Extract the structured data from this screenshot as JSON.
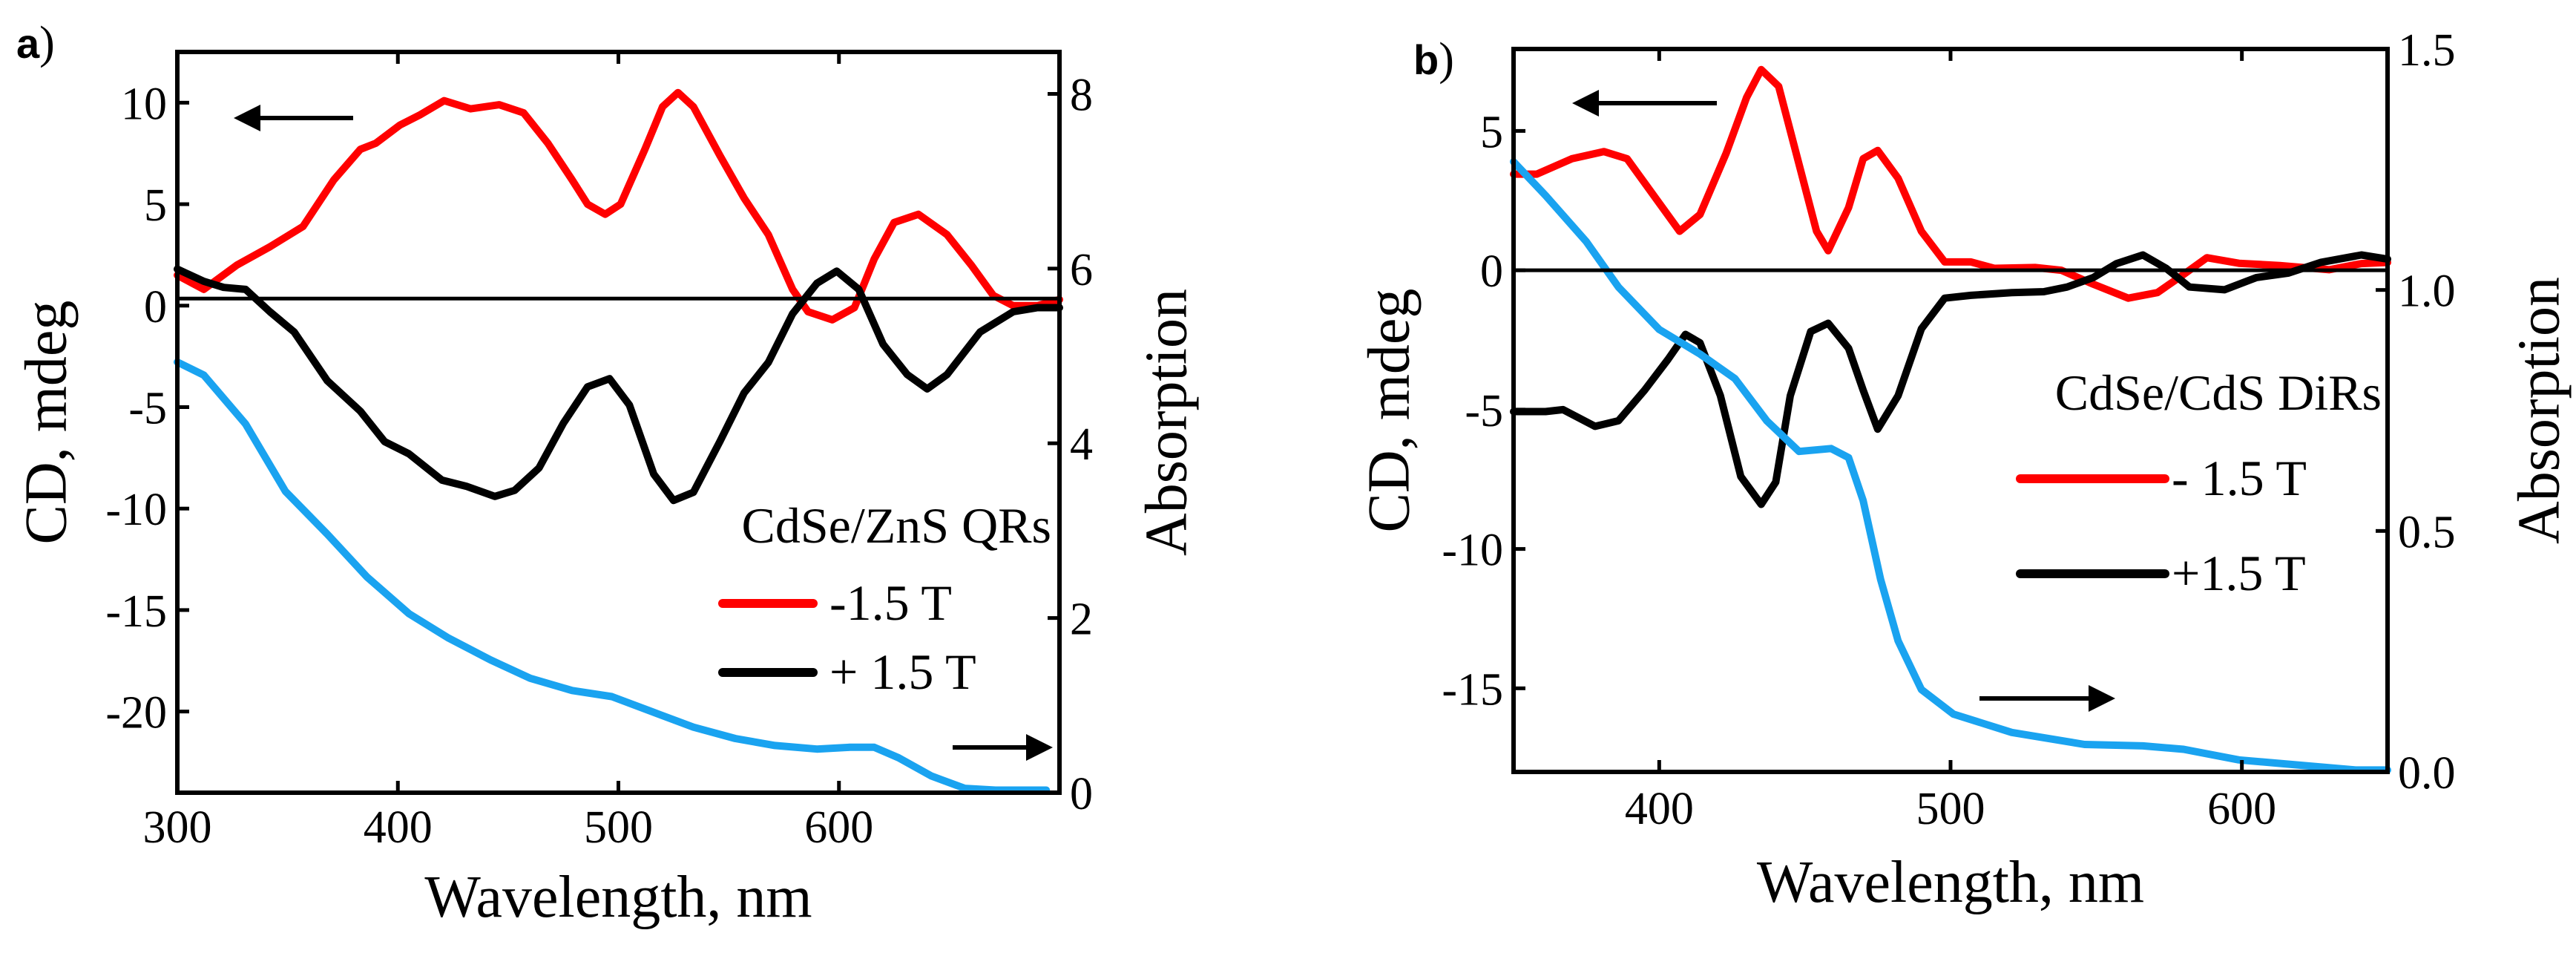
{
  "chart_data": [
    {
      "panel_label": "a",
      "panel_paren": ")",
      "type": "line",
      "xlabel": "Wavelength, nm",
      "ylabel": "CD, mdeg",
      "y2label": "Absorption",
      "xlim": [
        300,
        700
      ],
      "ylim": [
        -24,
        12.5
      ],
      "y2lim": [
        0,
        8.48
      ],
      "xticks": [
        300,
        400,
        500,
        600
      ],
      "yticks": [
        10,
        5,
        0,
        -5,
        -10,
        -15,
        -20
      ],
      "y2ticks": [
        0,
        2,
        4,
        6,
        8
      ],
      "y2tick_decimals": 0,
      "zero_line": 0.35,
      "legend_title": "CdSe/ZnS QRs",
      "legend_placement": "center-right",
      "series": [
        {
          "name": "-1.5 T",
          "axis": "left",
          "color": "#ff0000",
          "x": [
            300,
            312,
            327,
            342,
            357,
            371,
            383,
            390,
            401,
            410,
            421,
            433,
            446,
            457,
            468,
            479,
            486,
            494,
            501,
            512,
            520,
            527,
            534,
            546,
            557,
            568,
            579,
            586,
            597,
            607,
            616,
            625,
            636,
            649,
            660,
            670,
            679,
            690,
            700
          ],
          "y": [
            1.5,
            0.8,
            2.0,
            2.9,
            3.9,
            6.2,
            7.7,
            8.0,
            8.9,
            9.4,
            10.1,
            9.7,
            9.9,
            9.5,
            8.0,
            6.2,
            5.0,
            4.5,
            5.0,
            7.7,
            9.8,
            10.5,
            9.8,
            7.4,
            5.3,
            3.5,
            0.8,
            -0.3,
            -0.7,
            -0.1,
            2.3,
            4.1,
            4.5,
            3.5,
            2.0,
            0.5,
            0.0,
            0.0,
            0.3
          ]
        },
        {
          "name": "+ 1.5 T",
          "axis": "left",
          "color": "#000000",
          "x": [
            300,
            312,
            321,
            331,
            342,
            353,
            368,
            383,
            394,
            405,
            420,
            431,
            444,
            453,
            464,
            475,
            486,
            496,
            505,
            516,
            525,
            534,
            546,
            557,
            568,
            579,
            590,
            599,
            609,
            620,
            631,
            640,
            649,
            664,
            679,
            690,
            700
          ],
          "y": [
            1.8,
            1.2,
            0.9,
            0.8,
            -0.3,
            -1.3,
            -3.7,
            -5.2,
            -6.7,
            -7.3,
            -8.6,
            -8.9,
            -9.4,
            -9.1,
            -8.0,
            -5.8,
            -4.0,
            -3.6,
            -4.9,
            -8.3,
            -9.6,
            -9.2,
            -6.7,
            -4.3,
            -2.8,
            -0.4,
            1.1,
            1.7,
            0.8,
            -1.9,
            -3.4,
            -4.1,
            -3.4,
            -1.3,
            -0.3,
            -0.1,
            -0.1
          ]
        },
        {
          "name": "Absorption",
          "axis": "right",
          "color": "#1aa3f0",
          "x": [
            300,
            312,
            331,
            349,
            368,
            386,
            405,
            423,
            442,
            460,
            479,
            497,
            516,
            534,
            553,
            571,
            590,
            605,
            616,
            627,
            642,
            657,
            671,
            694
          ],
          "y": [
            4.93,
            4.78,
            4.22,
            3.45,
            2.96,
            2.47,
            2.05,
            1.77,
            1.52,
            1.31,
            1.17,
            1.1,
            0.92,
            0.75,
            0.62,
            0.54,
            0.5,
            0.52,
            0.52,
            0.4,
            0.19,
            0.05,
            0.03,
            0.03
          ]
        }
      ]
    },
    {
      "panel_label": "b",
      "panel_paren": ")",
      "type": "line",
      "xlabel": "Wavelength, nm",
      "ylabel": "CD, mdeg",
      "y2label": "Absorption",
      "xlim": [
        350,
        650
      ],
      "ylim": [
        -18,
        7.94
      ],
      "y2lim": [
        0,
        1.5
      ],
      "xticks": [
        400,
        500,
        600
      ],
      "yticks": [
        5,
        0,
        -5,
        -10,
        -15
      ],
      "y2ticks": [
        0.0,
        0.5,
        1.0,
        1.5
      ],
      "y2tick_decimals": 1,
      "zero_line": 0,
      "legend_title": "CdSe/CdS DiRs",
      "legend_placement": "center-right",
      "series": [
        {
          "name": "- 1.5 T",
          "axis": "left",
          "color": "#ff0000",
          "x": [
            350,
            358,
            370,
            381,
            389,
            398,
            407,
            414,
            423,
            430,
            435,
            441,
            448,
            454,
            458,
            465,
            470,
            475,
            482,
            490,
            498,
            507,
            515,
            529,
            538,
            549,
            561,
            571,
            580,
            588,
            599,
            613,
            630,
            641,
            650
          ],
          "y": [
            3.45,
            3.45,
            4.0,
            4.26,
            4.0,
            2.7,
            1.4,
            2.0,
            4.2,
            6.2,
            7.2,
            6.6,
            3.8,
            1.4,
            0.7,
            2.25,
            4.0,
            4.3,
            3.3,
            1.4,
            0.3,
            0.3,
            0.07,
            0.1,
            0.0,
            -0.5,
            -1.0,
            -0.8,
            -0.15,
            0.45,
            0.25,
            0.17,
            0.02,
            0.24,
            0.28
          ]
        },
        {
          "name": "+1.5 T",
          "axis": "left",
          "color": "#000000",
          "x": [
            350,
            361,
            367,
            378,
            386,
            395,
            403,
            409,
            414,
            421,
            428,
            435,
            440,
            445,
            452,
            458,
            465,
            470,
            475,
            482,
            490,
            498,
            507,
            521,
            532,
            540,
            549,
            557,
            566,
            574,
            582,
            594,
            605,
            616,
            627,
            641,
            650
          ],
          "y": [
            -5.07,
            -5.07,
            -5.0,
            -5.6,
            -5.4,
            -4.3,
            -3.2,
            -2.3,
            -2.6,
            -4.5,
            -7.4,
            -8.4,
            -7.6,
            -4.5,
            -2.2,
            -1.9,
            -2.8,
            -4.3,
            -5.7,
            -4.5,
            -2.1,
            -1.0,
            -0.9,
            -0.8,
            -0.77,
            -0.6,
            -0.26,
            0.24,
            0.55,
            0.07,
            -0.6,
            -0.7,
            -0.26,
            -0.1,
            0.28,
            0.55,
            0.4
          ]
        },
        {
          "name": "Absorption",
          "axis": "right",
          "color": "#1aa3f0",
          "x": [
            350,
            361,
            375,
            386,
            400,
            414,
            426,
            437,
            448,
            459,
            465,
            470,
            476,
            482,
            490,
            501,
            521,
            546,
            566,
            580,
            599,
            622,
            639,
            650
          ],
          "y": [
            1.266,
            1.196,
            1.1,
            1.006,
            0.918,
            0.867,
            0.816,
            0.728,
            0.665,
            0.671,
            0.652,
            0.563,
            0.399,
            0.272,
            0.171,
            0.12,
            0.082,
            0.057,
            0.054,
            0.047,
            0.025,
            0.013,
            0.004,
            0.004
          ]
        }
      ]
    }
  ]
}
